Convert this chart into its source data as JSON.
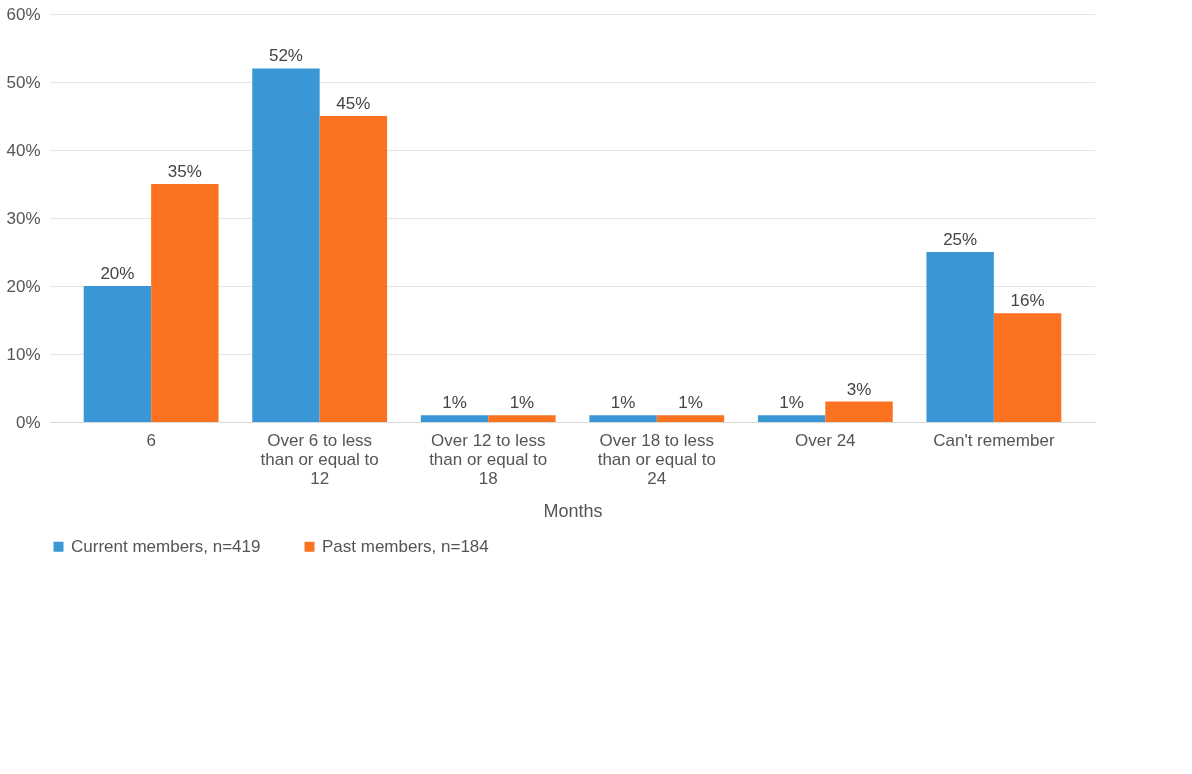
{
  "chart_data": {
    "type": "bar",
    "xlabel": "Months",
    "categories": [
      "6",
      "Over 6 to less than or equal to 12",
      "Over 12 to less than or equal to 18",
      "Over 18  to less than or equal to 24",
      "Over 24",
      "Can't remember"
    ],
    "series": [
      {
        "name": "Current members, n=419",
        "color": "#3a97d5",
        "values": [
          20,
          52,
          1,
          1,
          1,
          25
        ],
        "value_labels": [
          "20%",
          "52%",
          "1%",
          "1%",
          "1%",
          "25%"
        ]
      },
      {
        "name": "Past members, n=184",
        "color": "#fb7320",
        "values": [
          35,
          45,
          1,
          1,
          3,
          16
        ],
        "value_labels": [
          "35%",
          "45%",
          "1%",
          "1%",
          "3%",
          "16%"
        ]
      }
    ],
    "ylim": [
      0,
      60
    ],
    "yticks": [
      {
        "value": 0,
        "label": "0%"
      },
      {
        "value": 10,
        "label": "10%"
      },
      {
        "value": 20,
        "label": "20%"
      },
      {
        "value": 30,
        "label": "30%"
      },
      {
        "value": 40,
        "label": "40%"
      },
      {
        "value": 50,
        "label": "50%"
      },
      {
        "value": 60,
        "label": "60%"
      }
    ],
    "grid": "y",
    "legend": "bottom"
  }
}
